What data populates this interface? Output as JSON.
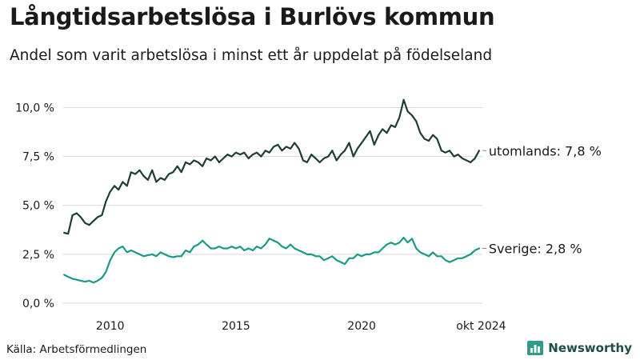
{
  "title": "Långtidsarbetslösa i Burlövs kommun",
  "subtitle": "Andel som varit arbetslösa i minst ett år uppdelat på födelseland",
  "source": "Källa: Arbetsförmedlingen",
  "brand": "Newsworthy",
  "colors": {
    "utomlands": "#1f3d34",
    "sverige": "#1a9a86",
    "grid": "#d9d9d9",
    "brand": "#1f4d47",
    "brand_icon": "#2f9c8a"
  },
  "chart_data": {
    "type": "line",
    "xlim": [
      2008.1,
      2024.8
    ],
    "ylim": [
      0,
      11
    ],
    "grid": true,
    "x_ticks": [
      2010,
      2015,
      2020,
      2024.75
    ],
    "x_tick_labels": [
      "2010",
      "2015",
      "2020",
      "okt 2024"
    ],
    "y_ticks": [
      0,
      2.5,
      5,
      7.5,
      10
    ],
    "y_tick_labels": [
      "0,0 %",
      "2,5 %",
      "5,0 %",
      "7,5 %",
      "10,0 %"
    ],
    "series": [
      {
        "name": "utomlands",
        "end_label": "utomlands: 7,8 %",
        "color": "#1f3d34",
        "points": [
          [
            2008.17,
            3.6
          ],
          [
            2008.33,
            3.55
          ],
          [
            2008.5,
            4.5
          ],
          [
            2008.67,
            4.6
          ],
          [
            2008.83,
            4.4
          ],
          [
            2009.0,
            4.1
          ],
          [
            2009.17,
            4.0
          ],
          [
            2009.33,
            4.2
          ],
          [
            2009.5,
            4.4
          ],
          [
            2009.67,
            4.5
          ],
          [
            2009.83,
            5.2
          ],
          [
            2010.0,
            5.7
          ],
          [
            2010.17,
            6.0
          ],
          [
            2010.33,
            5.8
          ],
          [
            2010.5,
            6.2
          ],
          [
            2010.67,
            6.0
          ],
          [
            2010.83,
            6.7
          ],
          [
            2011.0,
            6.6
          ],
          [
            2011.17,
            6.8
          ],
          [
            2011.33,
            6.5
          ],
          [
            2011.5,
            6.3
          ],
          [
            2011.67,
            6.8
          ],
          [
            2011.83,
            6.2
          ],
          [
            2012.0,
            6.4
          ],
          [
            2012.17,
            6.3
          ],
          [
            2012.33,
            6.6
          ],
          [
            2012.5,
            6.7
          ],
          [
            2012.67,
            7.0
          ],
          [
            2012.83,
            6.7
          ],
          [
            2013.0,
            7.2
          ],
          [
            2013.17,
            7.1
          ],
          [
            2013.33,
            7.3
          ],
          [
            2013.5,
            7.2
          ],
          [
            2013.67,
            7.0
          ],
          [
            2013.83,
            7.4
          ],
          [
            2014.0,
            7.3
          ],
          [
            2014.17,
            7.5
          ],
          [
            2014.33,
            7.2
          ],
          [
            2014.5,
            7.4
          ],
          [
            2014.67,
            7.6
          ],
          [
            2014.83,
            7.5
          ],
          [
            2015.0,
            7.7
          ],
          [
            2015.17,
            7.6
          ],
          [
            2015.33,
            7.7
          ],
          [
            2015.5,
            7.4
          ],
          [
            2015.67,
            7.6
          ],
          [
            2015.83,
            7.7
          ],
          [
            2016.0,
            7.5
          ],
          [
            2016.17,
            7.8
          ],
          [
            2016.33,
            7.7
          ],
          [
            2016.5,
            8.0
          ],
          [
            2016.67,
            8.1
          ],
          [
            2016.83,
            7.8
          ],
          [
            2017.0,
            8.0
          ],
          [
            2017.17,
            7.9
          ],
          [
            2017.33,
            8.2
          ],
          [
            2017.5,
            7.9
          ],
          [
            2017.67,
            7.3
          ],
          [
            2017.83,
            7.2
          ],
          [
            2018.0,
            7.6
          ],
          [
            2018.17,
            7.4
          ],
          [
            2018.33,
            7.2
          ],
          [
            2018.5,
            7.4
          ],
          [
            2018.67,
            7.5
          ],
          [
            2018.83,
            7.8
          ],
          [
            2019.0,
            7.3
          ],
          [
            2019.17,
            7.6
          ],
          [
            2019.33,
            7.8
          ],
          [
            2019.5,
            8.2
          ],
          [
            2019.67,
            7.5
          ],
          [
            2019.83,
            7.9
          ],
          [
            2020.0,
            8.2
          ],
          [
            2020.17,
            8.5
          ],
          [
            2020.33,
            8.8
          ],
          [
            2020.5,
            8.1
          ],
          [
            2020.67,
            8.6
          ],
          [
            2020.83,
            8.9
          ],
          [
            2021.0,
            8.7
          ],
          [
            2021.17,
            9.1
          ],
          [
            2021.33,
            9.0
          ],
          [
            2021.5,
            9.5
          ],
          [
            2021.67,
            10.4
          ],
          [
            2021.83,
            9.8
          ],
          [
            2022.0,
            9.6
          ],
          [
            2022.17,
            9.3
          ],
          [
            2022.33,
            8.7
          ],
          [
            2022.5,
            8.4
          ],
          [
            2022.67,
            8.3
          ],
          [
            2022.83,
            8.6
          ],
          [
            2023.0,
            8.4
          ],
          [
            2023.17,
            7.8
          ],
          [
            2023.33,
            7.7
          ],
          [
            2023.5,
            7.8
          ],
          [
            2023.67,
            7.5
          ],
          [
            2023.83,
            7.6
          ],
          [
            2024.0,
            7.4
          ],
          [
            2024.17,
            7.3
          ],
          [
            2024.33,
            7.2
          ],
          [
            2024.5,
            7.4
          ],
          [
            2024.67,
            7.8
          ]
        ]
      },
      {
        "name": "Sverige",
        "end_label": "Sverige: 2,8 %",
        "color": "#1a9a86",
        "points": [
          [
            2008.17,
            1.45
          ],
          [
            2008.33,
            1.35
          ],
          [
            2008.5,
            1.25
          ],
          [
            2008.67,
            1.2
          ],
          [
            2008.83,
            1.15
          ],
          [
            2009.0,
            1.1
          ],
          [
            2009.17,
            1.15
          ],
          [
            2009.33,
            1.05
          ],
          [
            2009.5,
            1.15
          ],
          [
            2009.67,
            1.3
          ],
          [
            2009.83,
            1.6
          ],
          [
            2010.0,
            2.2
          ],
          [
            2010.17,
            2.6
          ],
          [
            2010.33,
            2.8
          ],
          [
            2010.5,
            2.9
          ],
          [
            2010.67,
            2.6
          ],
          [
            2010.83,
            2.7
          ],
          [
            2011.0,
            2.6
          ],
          [
            2011.17,
            2.5
          ],
          [
            2011.33,
            2.4
          ],
          [
            2011.5,
            2.45
          ],
          [
            2011.67,
            2.5
          ],
          [
            2011.83,
            2.4
          ],
          [
            2012.0,
            2.6
          ],
          [
            2012.17,
            2.5
          ],
          [
            2012.33,
            2.4
          ],
          [
            2012.5,
            2.35
          ],
          [
            2012.67,
            2.4
          ],
          [
            2012.83,
            2.4
          ],
          [
            2013.0,
            2.7
          ],
          [
            2013.17,
            2.6
          ],
          [
            2013.33,
            2.9
          ],
          [
            2013.5,
            3.0
          ],
          [
            2013.67,
            3.2
          ],
          [
            2013.83,
            3.0
          ],
          [
            2014.0,
            2.8
          ],
          [
            2014.17,
            2.8
          ],
          [
            2014.33,
            2.9
          ],
          [
            2014.5,
            2.8
          ],
          [
            2014.67,
            2.8
          ],
          [
            2014.83,
            2.9
          ],
          [
            2015.0,
            2.8
          ],
          [
            2015.17,
            2.9
          ],
          [
            2015.33,
            2.7
          ],
          [
            2015.5,
            2.8
          ],
          [
            2015.67,
            2.7
          ],
          [
            2015.83,
            2.9
          ],
          [
            2016.0,
            2.8
          ],
          [
            2016.17,
            3.0
          ],
          [
            2016.33,
            3.3
          ],
          [
            2016.5,
            3.2
          ],
          [
            2016.67,
            3.1
          ],
          [
            2016.83,
            2.9
          ],
          [
            2017.0,
            2.8
          ],
          [
            2017.17,
            3.0
          ],
          [
            2017.33,
            2.8
          ],
          [
            2017.5,
            2.7
          ],
          [
            2017.67,
            2.6
          ],
          [
            2017.83,
            2.5
          ],
          [
            2018.0,
            2.5
          ],
          [
            2018.17,
            2.4
          ],
          [
            2018.33,
            2.4
          ],
          [
            2018.5,
            2.2
          ],
          [
            2018.67,
            2.3
          ],
          [
            2018.83,
            2.4
          ],
          [
            2019.0,
            2.2
          ],
          [
            2019.17,
            2.1
          ],
          [
            2019.33,
            2.0
          ],
          [
            2019.5,
            2.3
          ],
          [
            2019.67,
            2.3
          ],
          [
            2019.83,
            2.5
          ],
          [
            2020.0,
            2.4
          ],
          [
            2020.17,
            2.5
          ],
          [
            2020.33,
            2.5
          ],
          [
            2020.5,
            2.6
          ],
          [
            2020.67,
            2.6
          ],
          [
            2020.83,
            2.8
          ],
          [
            2021.0,
            3.0
          ],
          [
            2021.17,
            3.1
          ],
          [
            2021.33,
            3.0
          ],
          [
            2021.5,
            3.1
          ],
          [
            2021.67,
            3.35
          ],
          [
            2021.83,
            3.1
          ],
          [
            2022.0,
            3.3
          ],
          [
            2022.17,
            2.8
          ],
          [
            2022.33,
            2.6
          ],
          [
            2022.5,
            2.5
          ],
          [
            2022.67,
            2.4
          ],
          [
            2022.83,
            2.6
          ],
          [
            2023.0,
            2.4
          ],
          [
            2023.17,
            2.4
          ],
          [
            2023.33,
            2.2
          ],
          [
            2023.5,
            2.1
          ],
          [
            2023.67,
            2.2
          ],
          [
            2023.83,
            2.3
          ],
          [
            2024.0,
            2.3
          ],
          [
            2024.17,
            2.4
          ],
          [
            2024.33,
            2.5
          ],
          [
            2024.5,
            2.7
          ],
          [
            2024.67,
            2.8
          ]
        ]
      }
    ]
  }
}
